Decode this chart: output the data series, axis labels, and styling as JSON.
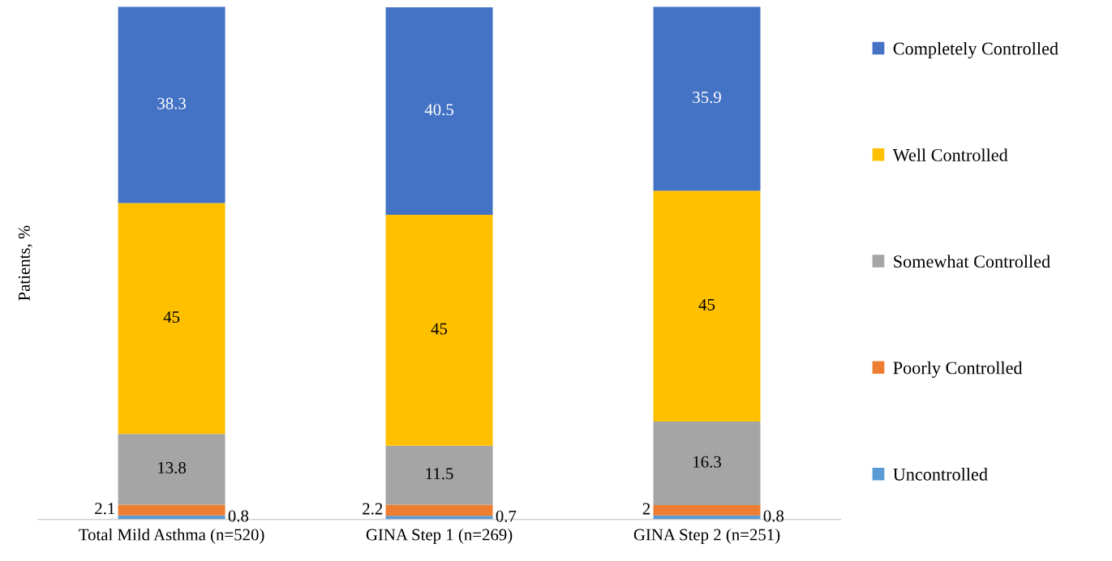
{
  "chart_data": {
    "type": "bar",
    "stacked": true,
    "ylabel": "Patients, %",
    "categories": [
      "Total Mild Asthma (n=520)",
      "GINA Step 1 (n=269)",
      "GINA Step 2 (n=251)"
    ],
    "series": [
      {
        "name": "Uncontrolled",
        "color": "#5b9bd5",
        "values": [
          0.8,
          0.7,
          0.8
        ]
      },
      {
        "name": "Poorly Controlled",
        "color": "#ed7d31",
        "values": [
          2.1,
          2.2,
          2
        ]
      },
      {
        "name": "Somewhat Controlled",
        "color": "#a5a5a5",
        "values": [
          13.8,
          11.5,
          16.3
        ]
      },
      {
        "name": "Well Controlled",
        "color": "#ffc000",
        "values": [
          45,
          45,
          45
        ]
      },
      {
        "name": "Completely Controlled",
        "color": "#4472c4",
        "values": [
          38.3,
          40.5,
          35.9
        ]
      }
    ],
    "data_labels": true,
    "legend": "right"
  }
}
